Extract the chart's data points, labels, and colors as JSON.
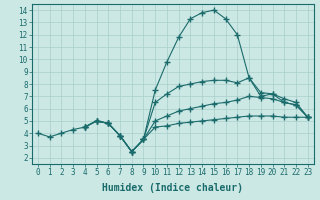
{
  "xlabel": "Humidex (Indice chaleur)",
  "bg_color": "#cce8e5",
  "line_color": "#1a6b6b",
  "grid_color": "#aacfcc",
  "xlim": [
    -0.5,
    23.5
  ],
  "ylim": [
    1.5,
    14.5
  ],
  "xticks": [
    0,
    1,
    2,
    3,
    4,
    5,
    6,
    7,
    8,
    9,
    10,
    11,
    12,
    13,
    14,
    15,
    16,
    17,
    18,
    19,
    20,
    21,
    22,
    23
  ],
  "yticks": [
    2,
    3,
    4,
    5,
    6,
    7,
    8,
    9,
    10,
    11,
    12,
    13,
    14
  ],
  "lines": [
    {
      "x": [
        0,
        1,
        2,
        3,
        4,
        5,
        6,
        7,
        8,
        9,
        10,
        11,
        12,
        13,
        14,
        15,
        16,
        17,
        18,
        19,
        20,
        21,
        22,
        23
      ],
      "y": [
        4.0,
        3.7,
        4.0,
        4.3,
        4.5,
        5.0,
        4.8,
        3.8,
        2.5,
        3.5,
        7.5,
        9.8,
        11.8,
        13.3,
        13.8,
        14.0,
        13.3,
        12.0,
        8.5,
        7.0,
        7.2,
        6.5,
        6.3,
        5.3
      ]
    },
    {
      "x": [
        4,
        5,
        6,
        7,
        8,
        9,
        10,
        11,
        12,
        13,
        14,
        15,
        16,
        17,
        18,
        19,
        20,
        21,
        22,
        23
      ],
      "y": [
        4.5,
        5.0,
        4.8,
        3.8,
        2.5,
        3.5,
        6.5,
        7.2,
        7.8,
        8.0,
        8.2,
        8.3,
        8.3,
        8.1,
        8.5,
        7.3,
        7.2,
        6.8,
        6.5,
        5.3
      ]
    },
    {
      "x": [
        4,
        5,
        6,
        7,
        8,
        9,
        10,
        11,
        12,
        13,
        14,
        15,
        16,
        17,
        18,
        19,
        20,
        21,
        22,
        23
      ],
      "y": [
        4.5,
        5.0,
        4.8,
        3.8,
        2.5,
        3.5,
        5.0,
        5.4,
        5.8,
        6.0,
        6.2,
        6.4,
        6.5,
        6.7,
        7.0,
        6.9,
        6.8,
        6.5,
        6.3,
        5.3
      ]
    },
    {
      "x": [
        4,
        5,
        6,
        7,
        8,
        9,
        10,
        11,
        12,
        13,
        14,
        15,
        16,
        17,
        18,
        19,
        20,
        21,
        22,
        23
      ],
      "y": [
        4.5,
        5.0,
        4.8,
        3.8,
        2.5,
        3.5,
        4.5,
        4.6,
        4.8,
        4.9,
        5.0,
        5.1,
        5.2,
        5.3,
        5.4,
        5.4,
        5.4,
        5.3,
        5.3,
        5.3
      ]
    }
  ],
  "marker": "+",
  "markersize": 4,
  "linewidth": 0.8,
  "xlabel_fontsize": 7,
  "tick_fontsize": 5.5,
  "font_family": "monospace"
}
